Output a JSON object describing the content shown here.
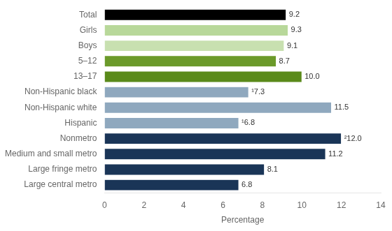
{
  "chart_data": {
    "type": "bar",
    "orientation": "horizontal",
    "categories": [
      "Total",
      "Girls",
      "Boys",
      "5–12",
      "13–17",
      "Non-Hispanic black",
      "Non-Hispanic white",
      "Hispanic",
      "Nonmetro",
      "Medium and small metro",
      "Large fringe metro",
      "Large central metro"
    ],
    "values": [
      9.2,
      9.3,
      9.1,
      8.7,
      10.0,
      7.3,
      11.5,
      6.8,
      12.0,
      11.2,
      8.1,
      6.8
    ],
    "value_labels": [
      "9.2",
      "9.3",
      "9.1",
      "8.7",
      "10.0",
      "¹7.3",
      "11.5",
      "¹6.8",
      "²12.0",
      "11.2",
      "8.1",
      "6.8"
    ],
    "data_labels": true,
    "colors": [
      "#000000",
      "#b8d89a",
      "#c8e0b0",
      "#6b9a2a",
      "#5a8a1a",
      "#8fa8be",
      "#8fa8be",
      "#8fa8be",
      "#1a3557",
      "#1a3557",
      "#1a3557",
      "#1a3557"
    ],
    "xlabel": "Percentage",
    "xlim": [
      0,
      14
    ],
    "xticks": [
      0,
      2,
      4,
      6,
      8,
      10,
      12,
      14
    ],
    "grid": false
  }
}
